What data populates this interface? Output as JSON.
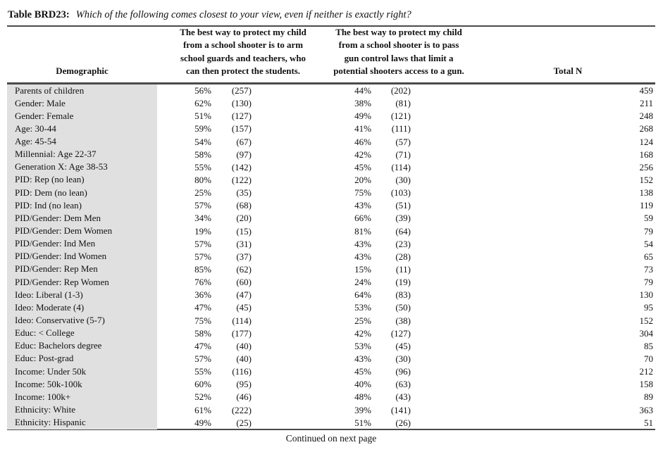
{
  "title": {
    "label": "Table BRD23:",
    "question": "Which of the following comes closest to your view, even if neither is exactly right?"
  },
  "columns": {
    "demographic": "Demographic",
    "option1_lines": [
      "The best way to protect my child",
      "from a school shooter is to arm",
      "school guards and teachers, who",
      "can then protect the students."
    ],
    "option2_lines": [
      "The best way to protect my child",
      "from a school shooter is to pass",
      "gun control laws that limit a",
      "potential shooters access to a gun."
    ],
    "total": "Total N"
  },
  "rows": [
    {
      "demographic": "Parents of children",
      "opt1_pct": "56%",
      "opt1_n": "(257)",
      "opt2_pct": "44%",
      "opt2_n": "(202)",
      "total_n": "459"
    },
    {
      "demographic": "Gender: Male",
      "opt1_pct": "62%",
      "opt1_n": "(130)",
      "opt2_pct": "38%",
      "opt2_n": "(81)",
      "total_n": "211"
    },
    {
      "demographic": "Gender: Female",
      "opt1_pct": "51%",
      "opt1_n": "(127)",
      "opt2_pct": "49%",
      "opt2_n": "(121)",
      "total_n": "248"
    },
    {
      "demographic": "Age: 30-44",
      "opt1_pct": "59%",
      "opt1_n": "(157)",
      "opt2_pct": "41%",
      "opt2_n": "(111)",
      "total_n": "268"
    },
    {
      "demographic": "Age: 45-54",
      "opt1_pct": "54%",
      "opt1_n": "(67)",
      "opt2_pct": "46%",
      "opt2_n": "(57)",
      "total_n": "124"
    },
    {
      "demographic": "Millennial: Age 22-37",
      "opt1_pct": "58%",
      "opt1_n": "(97)",
      "opt2_pct": "42%",
      "opt2_n": "(71)",
      "total_n": "168"
    },
    {
      "demographic": "Generation X: Age 38-53",
      "opt1_pct": "55%",
      "opt1_n": "(142)",
      "opt2_pct": "45%",
      "opt2_n": "(114)",
      "total_n": "256"
    },
    {
      "demographic": "PID: Rep (no lean)",
      "opt1_pct": "80%",
      "opt1_n": "(122)",
      "opt2_pct": "20%",
      "opt2_n": "(30)",
      "total_n": "152"
    },
    {
      "demographic": "PID: Dem (no lean)",
      "opt1_pct": "25%",
      "opt1_n": "(35)",
      "opt2_pct": "75%",
      "opt2_n": "(103)",
      "total_n": "138"
    },
    {
      "demographic": "PID: Ind (no lean)",
      "opt1_pct": "57%",
      "opt1_n": "(68)",
      "opt2_pct": "43%",
      "opt2_n": "(51)",
      "total_n": "119"
    },
    {
      "demographic": "PID/Gender: Dem Men",
      "opt1_pct": "34%",
      "opt1_n": "(20)",
      "opt2_pct": "66%",
      "opt2_n": "(39)",
      "total_n": "59"
    },
    {
      "demographic": "PID/Gender: Dem Women",
      "opt1_pct": "19%",
      "opt1_n": "(15)",
      "opt2_pct": "81%",
      "opt2_n": "(64)",
      "total_n": "79"
    },
    {
      "demographic": "PID/Gender: Ind Men",
      "opt1_pct": "57%",
      "opt1_n": "(31)",
      "opt2_pct": "43%",
      "opt2_n": "(23)",
      "total_n": "54"
    },
    {
      "demographic": "PID/Gender: Ind Women",
      "opt1_pct": "57%",
      "opt1_n": "(37)",
      "opt2_pct": "43%",
      "opt2_n": "(28)",
      "total_n": "65"
    },
    {
      "demographic": "PID/Gender: Rep Men",
      "opt1_pct": "85%",
      "opt1_n": "(62)",
      "opt2_pct": "15%",
      "opt2_n": "(11)",
      "total_n": "73"
    },
    {
      "demographic": "PID/Gender: Rep Women",
      "opt1_pct": "76%",
      "opt1_n": "(60)",
      "opt2_pct": "24%",
      "opt2_n": "(19)",
      "total_n": "79"
    },
    {
      "demographic": "Ideo: Liberal (1-3)",
      "opt1_pct": "36%",
      "opt1_n": "(47)",
      "opt2_pct": "64%",
      "opt2_n": "(83)",
      "total_n": "130"
    },
    {
      "demographic": "Ideo: Moderate (4)",
      "opt1_pct": "47%",
      "opt1_n": "(45)",
      "opt2_pct": "53%",
      "opt2_n": "(50)",
      "total_n": "95"
    },
    {
      "demographic": "Ideo: Conservative (5-7)",
      "opt1_pct": "75%",
      "opt1_n": "(114)",
      "opt2_pct": "25%",
      "opt2_n": "(38)",
      "total_n": "152"
    },
    {
      "demographic": "Educ: < College",
      "opt1_pct": "58%",
      "opt1_n": "(177)",
      "opt2_pct": "42%",
      "opt2_n": "(127)",
      "total_n": "304"
    },
    {
      "demographic": "Educ: Bachelors degree",
      "opt1_pct": "47%",
      "opt1_n": "(40)",
      "opt2_pct": "53%",
      "opt2_n": "(45)",
      "total_n": "85"
    },
    {
      "demographic": "Educ: Post-grad",
      "opt1_pct": "57%",
      "opt1_n": "(40)",
      "opt2_pct": "43%",
      "opt2_n": "(30)",
      "total_n": "70"
    },
    {
      "demographic": "Income: Under 50k",
      "opt1_pct": "55%",
      "opt1_n": "(116)",
      "opt2_pct": "45%",
      "opt2_n": "(96)",
      "total_n": "212"
    },
    {
      "demographic": "Income: 50k-100k",
      "opt1_pct": "60%",
      "opt1_n": "(95)",
      "opt2_pct": "40%",
      "opt2_n": "(63)",
      "total_n": "158"
    },
    {
      "demographic": "Income: 100k+",
      "opt1_pct": "52%",
      "opt1_n": "(46)",
      "opt2_pct": "48%",
      "opt2_n": "(43)",
      "total_n": "89"
    },
    {
      "demographic": "Ethnicity: White",
      "opt1_pct": "61%",
      "opt1_n": "(222)",
      "opt2_pct": "39%",
      "opt2_n": "(141)",
      "total_n": "363"
    },
    {
      "demographic": "Ethnicity: Hispanic",
      "opt1_pct": "49%",
      "opt1_n": "(25)",
      "opt2_pct": "51%",
      "opt2_n": "(26)",
      "total_n": "51"
    }
  ],
  "footer": "Continued on next page",
  "colors": {
    "background": "#ffffff",
    "text": "#111111",
    "shaded_column": "#e0e0e0",
    "rule": "#4a4a4a"
  }
}
